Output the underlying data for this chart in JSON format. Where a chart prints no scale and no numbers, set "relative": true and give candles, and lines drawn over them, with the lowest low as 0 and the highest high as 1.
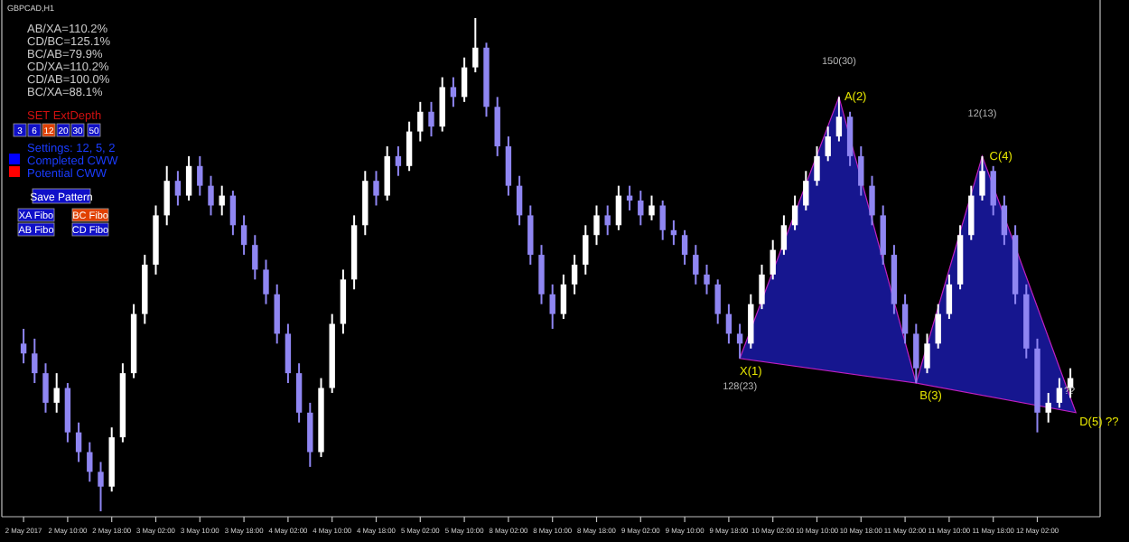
{
  "chart_data": {
    "type": "candlestick",
    "title": "GBPCAD,H1",
    "relative": true,
    "categories": [
      "2 May 2017",
      null,
      null,
      null,
      "2 May 10:00",
      null,
      null,
      null,
      "2 May 18:00",
      null,
      null,
      null,
      "3 May 02:00",
      null,
      null,
      null,
      "3 May 10:00",
      null,
      null,
      null,
      "3 May 18:00",
      null,
      null,
      null,
      "4 May 02:00",
      null,
      null,
      null,
      "4 May 10:00",
      null,
      null,
      null,
      "4 May 18:00",
      null,
      null,
      null,
      "5 May 02:00",
      null,
      null,
      null,
      "5 May 10:00",
      null,
      null,
      null,
      "8 May 02:00",
      null,
      null,
      null,
      "8 May 10:00",
      null,
      null,
      null,
      "8 May 18:00",
      null,
      null,
      null,
      "9 May 02:00",
      null,
      null,
      null,
      "9 May 10:00",
      null,
      null,
      null,
      "9 May 18:00",
      null,
      null,
      null,
      "10 May 02:00",
      null,
      null,
      null,
      "10 May 10:00",
      null,
      null,
      null,
      "10 May 18:00",
      null,
      null,
      null,
      "11 May 02:00",
      null,
      null,
      null,
      "11 May 10:00",
      null,
      null,
      null,
      "11 May 18:00",
      null,
      null,
      null,
      "12 May 02:00",
      null,
      null,
      null
    ],
    "ohlc": [
      [
        0.34,
        0.37,
        0.3,
        0.32
      ],
      [
        0.32,
        0.35,
        0.26,
        0.28
      ],
      [
        0.28,
        0.3,
        0.2,
        0.22
      ],
      [
        0.22,
        0.28,
        0.2,
        0.25
      ],
      [
        0.25,
        0.26,
        0.14,
        0.16
      ],
      [
        0.16,
        0.18,
        0.1,
        0.12
      ],
      [
        0.12,
        0.14,
        0.06,
        0.08
      ],
      [
        0.08,
        0.1,
        0,
        0.05
      ],
      [
        0.05,
        0.17,
        0.04,
        0.15
      ],
      [
        0.15,
        0.3,
        0.14,
        0.28
      ],
      [
        0.28,
        0.42,
        0.27,
        0.4
      ],
      [
        0.4,
        0.52,
        0.38,
        0.5
      ],
      [
        0.5,
        0.62,
        0.48,
        0.6
      ],
      [
        0.6,
        0.7,
        0.58,
        0.67
      ],
      [
        0.67,
        0.69,
        0.62,
        0.64
      ],
      [
        0.64,
        0.72,
        0.63,
        0.7
      ],
      [
        0.7,
        0.72,
        0.64,
        0.66
      ],
      [
        0.66,
        0.68,
        0.6,
        0.62
      ],
      [
        0.62,
        0.66,
        0.6,
        0.64
      ],
      [
        0.64,
        0.65,
        0.56,
        0.58
      ],
      [
        0.58,
        0.6,
        0.52,
        0.54
      ],
      [
        0.54,
        0.56,
        0.47,
        0.49
      ],
      [
        0.49,
        0.51,
        0.42,
        0.44
      ],
      [
        0.44,
        0.46,
        0.34,
        0.36
      ],
      [
        0.36,
        0.38,
        0.26,
        0.28
      ],
      [
        0.28,
        0.3,
        0.18,
        0.2
      ],
      [
        0.2,
        0.22,
        0.09,
        0.12
      ],
      [
        0.12,
        0.27,
        0.11,
        0.25
      ],
      [
        0.25,
        0.4,
        0.24,
        0.38
      ],
      [
        0.38,
        0.49,
        0.36,
        0.47
      ],
      [
        0.47,
        0.6,
        0.45,
        0.58
      ],
      [
        0.58,
        0.69,
        0.56,
        0.67
      ],
      [
        0.67,
        0.69,
        0.62,
        0.64
      ],
      [
        0.64,
        0.74,
        0.63,
        0.72
      ],
      [
        0.72,
        0.74,
        0.68,
        0.7
      ],
      [
        0.7,
        0.79,
        0.69,
        0.77
      ],
      [
        0.77,
        0.83,
        0.75,
        0.81
      ],
      [
        0.81,
        0.83,
        0.76,
        0.78
      ],
      [
        0.78,
        0.88,
        0.77,
        0.86
      ],
      [
        0.86,
        0.88,
        0.82,
        0.84
      ],
      [
        0.84,
        0.92,
        0.83,
        0.9
      ],
      [
        0.9,
        1,
        0.89,
        0.94
      ],
      [
        0.94,
        0.95,
        0.8,
        0.82
      ],
      [
        0.82,
        0.84,
        0.72,
        0.74
      ],
      [
        0.74,
        0.76,
        0.64,
        0.66
      ],
      [
        0.66,
        0.68,
        0.58,
        0.6
      ],
      [
        0.6,
        0.62,
        0.5,
        0.52
      ],
      [
        0.52,
        0.54,
        0.42,
        0.44
      ],
      [
        0.44,
        0.46,
        0.37,
        0.4
      ],
      [
        0.4,
        0.48,
        0.39,
        0.46
      ],
      [
        0.46,
        0.52,
        0.44,
        0.5
      ],
      [
        0.5,
        0.58,
        0.48,
        0.56
      ],
      [
        0.56,
        0.62,
        0.54,
        0.6
      ],
      [
        0.6,
        0.62,
        0.56,
        0.58
      ],
      [
        0.58,
        0.66,
        0.57,
        0.64
      ],
      [
        0.64,
        0.66,
        0.61,
        0.63
      ],
      [
        0.63,
        0.65,
        0.58,
        0.6
      ],
      [
        0.6,
        0.64,
        0.59,
        0.62
      ],
      [
        0.62,
        0.63,
        0.55,
        0.57
      ],
      [
        0.57,
        0.59,
        0.54,
        0.56
      ],
      [
        0.56,
        0.57,
        0.5,
        0.52
      ],
      [
        0.52,
        0.54,
        0.46,
        0.48
      ],
      [
        0.48,
        0.5,
        0.44,
        0.46
      ],
      [
        0.46,
        0.47,
        0.38,
        0.4
      ],
      [
        0.4,
        0.42,
        0.34,
        0.36
      ],
      [
        0.36,
        0.38,
        0.31,
        0.34
      ],
      [
        0.34,
        0.44,
        0.33,
        0.42
      ],
      [
        0.42,
        0.5,
        0.41,
        0.48
      ],
      [
        0.48,
        0.55,
        0.47,
        0.53
      ],
      [
        0.53,
        0.6,
        0.52,
        0.58
      ],
      [
        0.58,
        0.64,
        0.57,
        0.62
      ],
      [
        0.62,
        0.69,
        0.61,
        0.67
      ],
      [
        0.67,
        0.74,
        0.66,
        0.72
      ],
      [
        0.72,
        0.78,
        0.71,
        0.76
      ],
      [
        0.76,
        0.84,
        0.75,
        0.8
      ],
      [
        0.8,
        0.81,
        0.7,
        0.72
      ],
      [
        0.72,
        0.74,
        0.64,
        0.66
      ],
      [
        0.66,
        0.68,
        0.58,
        0.6
      ],
      [
        0.6,
        0.62,
        0.5,
        0.52
      ],
      [
        0.52,
        0.54,
        0.4,
        0.42
      ],
      [
        0.42,
        0.44,
        0.34,
        0.36
      ],
      [
        0.36,
        0.38,
        0.26,
        0.29
      ],
      [
        0.29,
        0.36,
        0.28,
        0.34
      ],
      [
        0.34,
        0.42,
        0.33,
        0.4
      ],
      [
        0.4,
        0.48,
        0.39,
        0.46
      ],
      [
        0.46,
        0.58,
        0.45,
        0.56
      ],
      [
        0.56,
        0.66,
        0.55,
        0.64
      ],
      [
        0.64,
        0.72,
        0.63,
        0.69
      ],
      [
        0.69,
        0.7,
        0.6,
        0.62
      ],
      [
        0.62,
        0.64,
        0.54,
        0.56
      ],
      [
        0.56,
        0.58,
        0.42,
        0.44
      ],
      [
        0.44,
        0.46,
        0.31,
        0.33
      ],
      [
        0.33,
        0.35,
        0.16,
        0.2
      ],
      [
        0.2,
        0.24,
        0.18,
        0.22
      ],
      [
        0.22,
        0.27,
        0.21,
        0.25
      ],
      [
        0.25,
        0.29,
        0.23,
        0.27
      ]
    ],
    "annotations": [
      "AB/XA=110.2%",
      "CD/BC=125.1%",
      "BC/AB=79.9%",
      "CD/XA=110.2%",
      "CD/AB=100.0%",
      "BC/XA=88.1%",
      "SET ExtDepth",
      "3",
      "6",
      "12",
      "20",
      "30",
      "50",
      "Settings: 12, 5, 2",
      "Completed CWW",
      "Potential CWW",
      "Save Pattern",
      "XA Fibo",
      "BC Fibo",
      "AB Fibo",
      "CD Fibo",
      "X(1)",
      "A(2)",
      "B(3)",
      "C(4)",
      "D(5) ??",
      "150(30)",
      "12(13)",
      "128(23)",
      "??"
    ]
  }
}
